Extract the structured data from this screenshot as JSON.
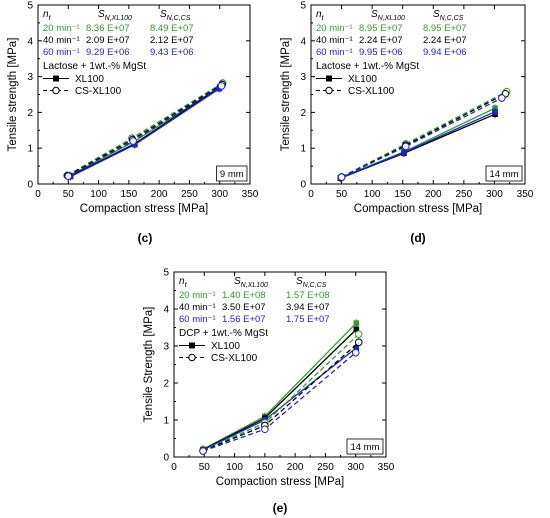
{
  "chart_data": [
    {
      "type": "line",
      "panel_label": "(c)",
      "xlabel": "Compaction stress [MPa]",
      "ylabel": "Tensile strength [MPa]",
      "xlim": [
        0,
        350
      ],
      "ylim": [
        0,
        5
      ],
      "xticks": [
        0,
        50,
        100,
        150,
        200,
        250,
        300,
        350
      ],
      "yticks": [
        0,
        1,
        2,
        3,
        4,
        5
      ],
      "grid": false,
      "legend_title": "Lactose + 1wt.-% MgSt",
      "legend": [
        {
          "label": "XL100",
          "style": "solid",
          "marker": "filled-square"
        },
        {
          "label": "CS-XL100",
          "style": "dashed",
          "marker": "open-circle"
        }
      ],
      "table": {
        "header": [
          "n_t",
          "S_N,XL100",
          "S_N,C,CS"
        ],
        "rows": [
          {
            "n": "20 min⁻¹",
            "xl": "8.36 E+07",
            "cs": "8.49 E+07",
            "color": "#2ca02c"
          },
          {
            "n": "40 min⁻¹",
            "xl": "2.09 E+07",
            "cs": "2.12 E+07",
            "color": "#000000"
          },
          {
            "n": "60 min⁻¹",
            "xl": "9.29 E+06",
            "cs": "9.43 E+06",
            "color": "#2222cc"
          }
        ]
      },
      "annotation": "9 mm",
      "series": [
        {
          "rpm": "20",
          "variant": "XL100",
          "x": [
            52,
            158,
            301
          ],
          "y": [
            0.24,
            1.18,
            2.72
          ]
        },
        {
          "rpm": "40",
          "variant": "XL100",
          "x": [
            53,
            159,
            300
          ],
          "y": [
            0.22,
            1.12,
            2.7
          ]
        },
        {
          "rpm": "60",
          "variant": "XL100",
          "x": [
            54,
            160,
            299
          ],
          "y": [
            0.21,
            1.1,
            2.66
          ]
        },
        {
          "rpm": "20",
          "variant": "CS-XL100",
          "x": [
            48,
            155,
            305
          ],
          "y": [
            0.24,
            1.28,
            2.82
          ]
        },
        {
          "rpm": "40",
          "variant": "CS-XL100",
          "x": [
            49,
            156,
            304
          ],
          "y": [
            0.23,
            1.24,
            2.78
          ]
        },
        {
          "rpm": "60",
          "variant": "CS-XL100",
          "x": [
            50,
            157,
            303
          ],
          "y": [
            0.22,
            1.2,
            2.74
          ]
        }
      ]
    },
    {
      "type": "line",
      "panel_label": "(d)",
      "xlabel": "Compaction stress [MPa]",
      "ylabel": "Tensile strength [MPa]",
      "xlim": [
        0,
        350
      ],
      "ylim": [
        0,
        5
      ],
      "xticks": [
        0,
        50,
        100,
        150,
        200,
        250,
        300,
        350
      ],
      "yticks": [
        0,
        1,
        2,
        3,
        4,
        5
      ],
      "grid": false,
      "legend_title": "Lactose + 1wt.-% MgSt",
      "legend": [
        {
          "label": "XL100",
          "style": "solid",
          "marker": "filled-square"
        },
        {
          "label": "CS-XL100",
          "style": "dashed",
          "marker": "open-circle"
        }
      ],
      "table": {
        "header": [
          "n_t",
          "S_N,XL100",
          "S_N,C,CS"
        ],
        "rows": [
          {
            "n": "20 min⁻¹",
            "xl": "8.95 E+07",
            "cs": "8.95 E+07",
            "color": "#2ca02c"
          },
          {
            "n": "40 min⁻¹",
            "xl": "2.24 E+07",
            "cs": "2.24 E+07",
            "color": "#000000"
          },
          {
            "n": "60 min⁻¹",
            "xl": "9.95 E+06",
            "cs": "9.94 E+06",
            "color": "#2222cc"
          }
        ]
      },
      "annotation": "14 mm",
      "series": [
        {
          "rpm": "20",
          "variant": "XL100",
          "x": [
            48,
            152,
            301
          ],
          "y": [
            0.18,
            0.9,
            2.12
          ]
        },
        {
          "rpm": "40",
          "variant": "XL100",
          "x": [
            48,
            152,
            301
          ],
          "y": [
            0.16,
            0.86,
            1.95
          ]
        },
        {
          "rpm": "60",
          "variant": "XL100",
          "x": [
            48,
            152,
            301
          ],
          "y": [
            0.17,
            0.88,
            2.02
          ]
        },
        {
          "rpm": "20",
          "variant": "CS-XL100",
          "x": [
            50,
            155,
            320
          ],
          "y": [
            0.2,
            1.12,
            2.58
          ]
        },
        {
          "rpm": "40",
          "variant": "CS-XL100",
          "x": [
            50,
            155,
            318
          ],
          "y": [
            0.19,
            1.08,
            2.52
          ]
        },
        {
          "rpm": "60",
          "variant": "CS-XL100",
          "x": [
            50,
            155,
            312
          ],
          "y": [
            0.19,
            1.05,
            2.4
          ]
        }
      ]
    },
    {
      "type": "line",
      "panel_label": "(e)",
      "xlabel": "Compaction stress [MPa]",
      "ylabel": "Tensile Strength [MPa]",
      "xlim": [
        0,
        350
      ],
      "ylim": [
        0,
        5
      ],
      "xticks": [
        0,
        50,
        100,
        150,
        200,
        250,
        300,
        350
      ],
      "yticks": [
        0,
        1,
        2,
        3,
        4,
        5
      ],
      "grid": false,
      "legend_title": "DCP + 1wt.-% MgSt",
      "legend": [
        {
          "label": "XL100",
          "style": "solid",
          "marker": "filled-square"
        },
        {
          "label": "CS-XL100",
          "style": "dashed",
          "marker": "open-circle"
        }
      ],
      "table": {
        "header": [
          "n_t",
          "S_N,XL100",
          "S_N,C,CS"
        ],
        "rows": [
          {
            "n": "20 min⁻¹",
            "xl": "1.40 E+08",
            "cs": "1.57 E+08",
            "color": "#2ca02c"
          },
          {
            "n": "40 min⁻¹",
            "xl": "3.50 E+07",
            "cs": "3.94 E+07",
            "color": "#000000"
          },
          {
            "n": "60 min⁻¹",
            "xl": "1.56 E+07",
            "cs": "1.75 E+07",
            "color": "#2222cc"
          }
        ]
      },
      "annotation": "14 mm",
      "series": [
        {
          "rpm": "20",
          "variant": "XL100",
          "x": [
            48,
            150,
            301
          ],
          "y": [
            0.21,
            1.1,
            3.62
          ]
        },
        {
          "rpm": "40",
          "variant": "XL100",
          "x": [
            48,
            150,
            301
          ],
          "y": [
            0.2,
            1.05,
            3.45
          ]
        },
        {
          "rpm": "60",
          "variant": "XL100",
          "x": [
            48,
            150,
            301
          ],
          "y": [
            0.19,
            1.0,
            2.95
          ]
        },
        {
          "rpm": "20",
          "variant": "CS-XL100",
          "x": [
            48,
            150,
            305
          ],
          "y": [
            0.18,
            0.92,
            3.32
          ]
        },
        {
          "rpm": "40",
          "variant": "CS-XL100",
          "x": [
            48,
            150,
            305
          ],
          "y": [
            0.17,
            0.85,
            3.1
          ]
        },
        {
          "rpm": "60",
          "variant": "CS-XL100",
          "x": [
            48,
            150,
            300
          ],
          "y": [
            0.16,
            0.75,
            2.82
          ]
        }
      ]
    }
  ],
  "colors": {
    "20": "#2ca02c",
    "40": "#000000",
    "60": "#2222cc",
    "axis": "#000000"
  }
}
